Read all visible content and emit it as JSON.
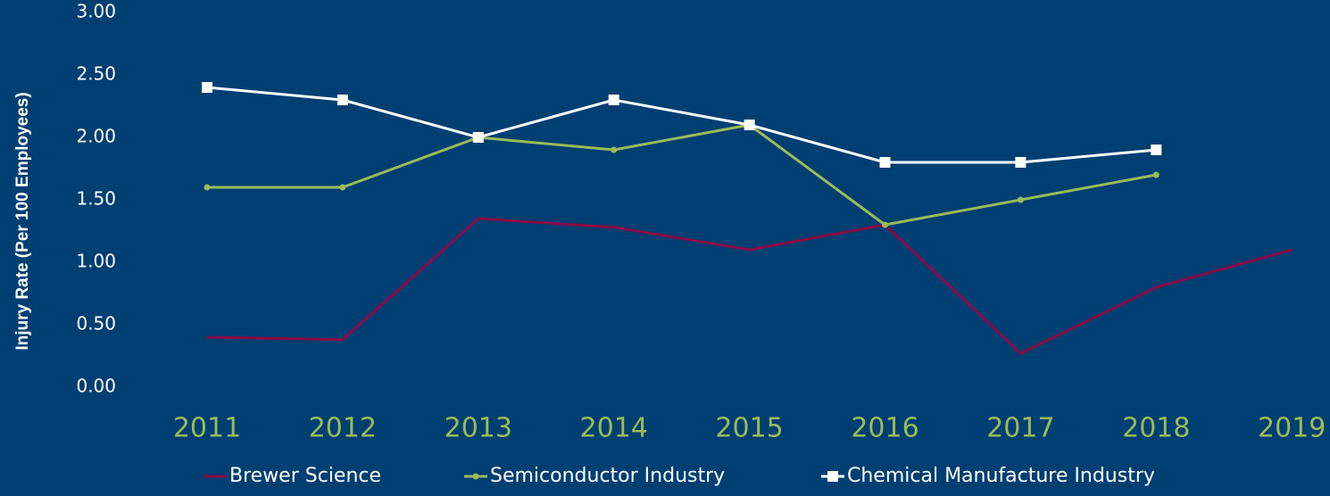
{
  "chart_data": {
    "type": "line",
    "y_label": "Injury Rate (Per 100 Employees)",
    "categories": [
      "2011",
      "2012",
      "2013",
      "2014",
      "2015",
      "2016",
      "2017",
      "2018",
      "2019"
    ],
    "series": [
      {
        "name": "Brewer Science",
        "color": "#8b0a4a",
        "marker": "none",
        "values": [
          0.4,
          0.38,
          1.35,
          1.28,
          1.1,
          1.3,
          0.27,
          0.8,
          1.1
        ]
      },
      {
        "name": "Semiconductor Industry",
        "color": "#9bbb59",
        "marker": "circle",
        "values": [
          1.6,
          1.6,
          2.0,
          1.9,
          2.1,
          1.3,
          1.5,
          1.7,
          null
        ]
      },
      {
        "name": "Chemical Manufacture Industry",
        "color": "#ffffff",
        "marker": "square",
        "values": [
          2.4,
          2.3,
          2.0,
          2.3,
          2.1,
          1.8,
          1.8,
          1.9,
          null
        ]
      }
    ],
    "ylim": [
      0,
      3
    ],
    "yticks": [
      {
        "value": 0,
        "label": "0.00"
      },
      {
        "value": 0.5,
        "label": "0.50"
      },
      {
        "value": 1,
        "label": "1.00"
      },
      {
        "value": 1.5,
        "label": "1.50"
      },
      {
        "value": 2,
        "label": "2.00"
      },
      {
        "value": 2.5,
        "label": "2.50"
      },
      {
        "value": 3,
        "label": "3.00"
      }
    ],
    "grid": false,
    "legend": "bottom"
  }
}
